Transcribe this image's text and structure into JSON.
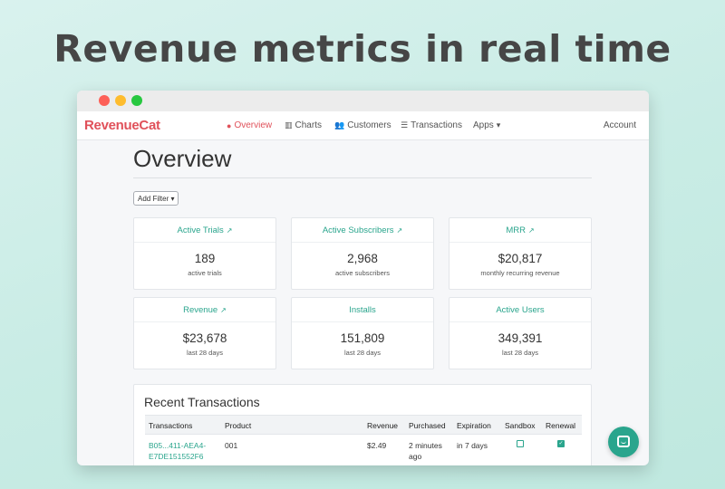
{
  "headline": "Revenue metrics in real time",
  "navbar": {
    "logo": "RevenueCat",
    "items": [
      {
        "label": "Overview",
        "icon": "map-pin-icon",
        "active": true
      },
      {
        "label": "Charts",
        "icon": "bar-chart-icon"
      },
      {
        "label": "Customers",
        "icon": "users-icon"
      },
      {
        "label": "Transactions",
        "icon": "list-icon"
      },
      {
        "label": "Apps",
        "icon": "caret-down-icon"
      }
    ],
    "account": "Account"
  },
  "page": {
    "title": "Overview",
    "filter_button": "Add Filter"
  },
  "cards": [
    {
      "title": "Active Trials",
      "value": "189",
      "sub": "active trials",
      "external": true
    },
    {
      "title": "Active Subscribers",
      "value": "2,968",
      "sub": "active subscribers",
      "external": true
    },
    {
      "title": "MRR",
      "value": "$20,817",
      "sub": "monthly recurring revenue",
      "external": true
    },
    {
      "title": "Revenue",
      "value": "$23,678",
      "sub": "last 28 days",
      "external": true
    },
    {
      "title": "Installs",
      "value": "151,809",
      "sub": "last 28 days",
      "external": false
    },
    {
      "title": "Active Users",
      "value": "349,391",
      "sub": "last 28 days",
      "external": false
    }
  ],
  "transactions": {
    "title": "Recent Transactions",
    "columns": [
      "Transactions",
      "Product",
      "Revenue",
      "Purchased",
      "Expiration",
      "Sandbox",
      "Renewal"
    ],
    "rows": [
      {
        "id": "B05...411-AEA4-E7DE151552F6",
        "product": "001",
        "revenue": "$2.49",
        "purchased": "2 minutes ago",
        "expiration": "in 7 days",
        "sandbox": false,
        "renewal": true
      }
    ]
  },
  "colors": {
    "accent": "#2aa58d",
    "brand": "#e0515a",
    "background": "#c9ece5"
  }
}
